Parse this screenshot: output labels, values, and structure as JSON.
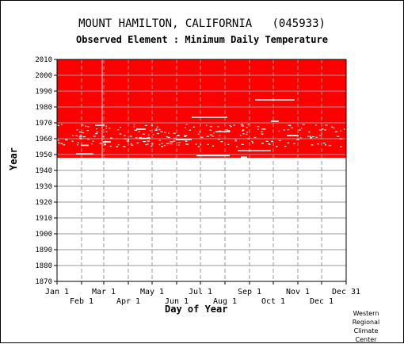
{
  "chart_data": {
    "type": "heatmap",
    "title": "MOUNT HAMILTON, CALIFORNIA   (045933)",
    "subtitle": "Observed Element : Minimum Daily Temperature",
    "xlabel": "Day of Year",
    "ylabel": "Year",
    "ylim": [
      1870,
      2010
    ],
    "xlim": [
      "Jan 1",
      "Dec 31"
    ],
    "x_ticks_top_row": [
      "Jan 1",
      "Mar 1",
      "May 1",
      "Jul 1",
      "Sep 1",
      "Nov 1",
      "Dec 31"
    ],
    "x_ticks_bottom_row": [
      "Feb 1",
      "Apr 1",
      "Jun 1",
      "Aug 1",
      "Oct 1",
      "Dec 1"
    ],
    "y_ticks": [
      2010,
      2000,
      1990,
      1980,
      1970,
      1960,
      1950,
      1940,
      1930,
      1920,
      1910,
      1900,
      1890,
      1880,
      1870
    ],
    "grid": true,
    "fill_color": "#ff0000",
    "data_start_year": 1948,
    "data_end_year": 2010
  },
  "credit": [
    "Western",
    "Regional",
    "Climate",
    "Center"
  ]
}
